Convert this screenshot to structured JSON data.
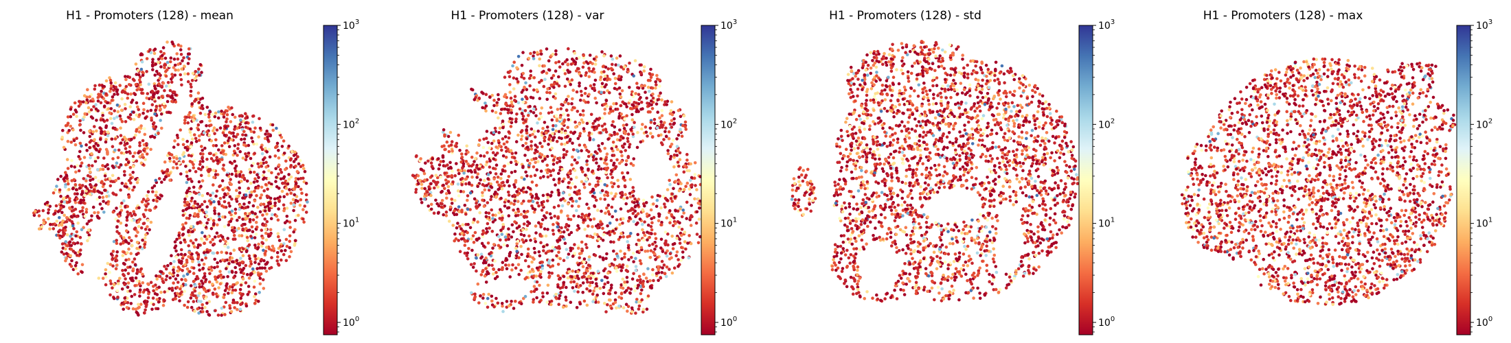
{
  "figure": {
    "colormap": "RdYlBu",
    "colormap_stops": [
      "#a50026",
      "#d73027",
      "#f46d43",
      "#fdae61",
      "#fee090",
      "#ffffbf",
      "#e0f3f8",
      "#abd9e9",
      "#74add1",
      "#4575b4",
      "#313695"
    ]
  },
  "chart_data": [
    {
      "type": "scatter",
      "title": "H1 - Promoters (128) - mean",
      "colorbar": {
        "scale": "log",
        "range": [
          0.75,
          1000
        ],
        "ticks": [
          {
            "base": "10",
            "exp": "0",
            "value": 1
          },
          {
            "base": "10",
            "exp": "1",
            "value": 10
          },
          {
            "base": "10",
            "exp": "2",
            "value": 100
          },
          {
            "base": "10",
            "exp": "3",
            "value": 1000
          }
        ]
      },
      "axes_visible": false
    },
    {
      "type": "scatter",
      "title": "H1 - Promoters (128) - var",
      "colorbar": {
        "scale": "log",
        "range": [
          0.75,
          1000
        ],
        "ticks": [
          {
            "base": "10",
            "exp": "0",
            "value": 1
          },
          {
            "base": "10",
            "exp": "1",
            "value": 10
          },
          {
            "base": "10",
            "exp": "2",
            "value": 100
          },
          {
            "base": "10",
            "exp": "3",
            "value": 1000
          }
        ]
      },
      "axes_visible": false
    },
    {
      "type": "scatter",
      "title": "H1 - Promoters (128) - std",
      "colorbar": {
        "scale": "log",
        "range": [
          0.75,
          1000
        ],
        "ticks": [
          {
            "base": "10",
            "exp": "0",
            "value": 1
          },
          {
            "base": "10",
            "exp": "1",
            "value": 10
          },
          {
            "base": "10",
            "exp": "2",
            "value": 100
          },
          {
            "base": "10",
            "exp": "3",
            "value": 1000
          }
        ]
      },
      "axes_visible": false
    },
    {
      "type": "scatter",
      "title": "H1 - Promoters (128) - max",
      "colorbar": {
        "scale": "log",
        "range": [
          0.75,
          1000
        ],
        "ticks": [
          {
            "base": "10",
            "exp": "0",
            "value": 1
          },
          {
            "base": "10",
            "exp": "1",
            "value": 10
          },
          {
            "base": "10",
            "exp": "2",
            "value": 100
          },
          {
            "base": "10",
            "exp": "3",
            "value": 1000
          }
        ]
      },
      "axes_visible": false
    }
  ]
}
